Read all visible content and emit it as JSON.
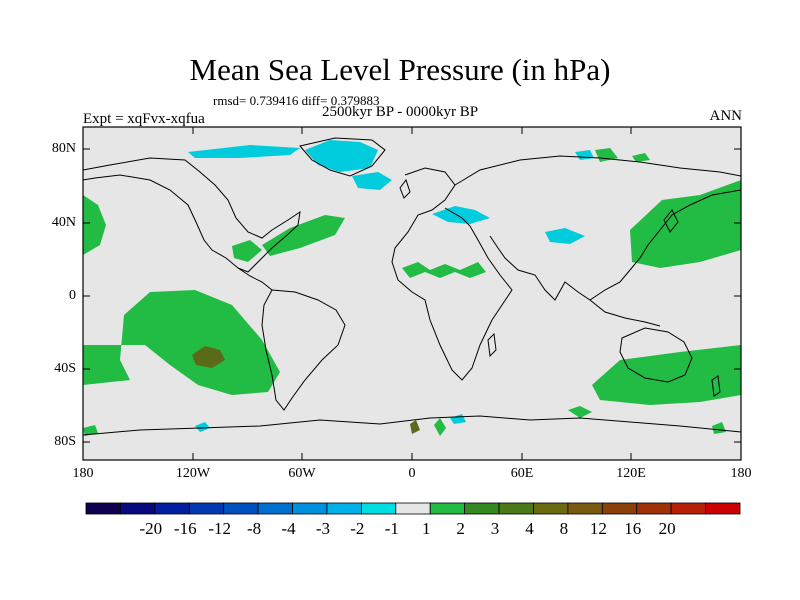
{
  "title": "Mean Sea Level Pressure (in hPa)",
  "stats_text": "rmsd= 0.739416 diff= 0.379883",
  "experiment_text": "Expt = xqFvx-xqfua",
  "period_text": "2500kyr BP - 0000kyr BP",
  "season_text": "ANN",
  "colors": {
    "land_bg": "#e6e6e6",
    "positive_1_2": "#22bb44",
    "positive_3_4": "#4a7a1a",
    "positive_4_8": "#6b5a10",
    "negative_1_2": "#00ccdd",
    "negative_2_3": "#00aadd"
  },
  "axes": {
    "y_ticks": [
      "80N",
      "40N",
      "0",
      "40S",
      "80S"
    ],
    "x_ticks": [
      "180",
      "120W",
      "60W",
      "0",
      "60E",
      "120E",
      "180"
    ]
  },
  "colorbar": {
    "labels": [
      "-20",
      "-16",
      "-12",
      "-8",
      "-4",
      "-3",
      "-2",
      "-1",
      "1",
      "2",
      "3",
      "4",
      "8",
      "12",
      "16",
      "20"
    ],
    "colors": [
      "#100050",
      "#080880",
      "#0020a0",
      "#0038b0",
      "#0050c0",
      "#0070d0",
      "#0090e0",
      "#00b0e8",
      "#00dde0",
      "#e6e6e6",
      "#22bb44",
      "#338822",
      "#4a7a1a",
      "#6b6a10",
      "#7a5a10",
      "#8a4008",
      "#a03008",
      "#b82008",
      "#cc0000"
    ]
  }
}
